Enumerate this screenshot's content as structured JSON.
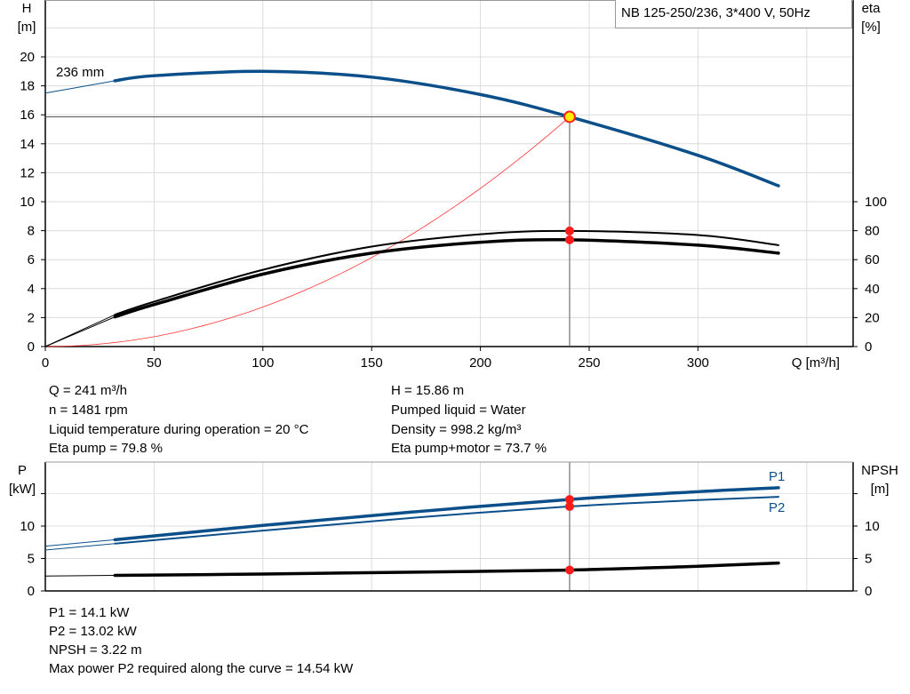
{
  "chart_data": [
    {
      "type": "line",
      "title": "NB 125-250/236, 3*400 V, 50Hz",
      "xlabel": "Q [m³/h]",
      "ylabel": "H",
      "ylabel_unit": "[m]",
      "y2label": "eta",
      "y2label_unit": "[%]",
      "xlim": [
        0,
        372
      ],
      "ylim": [
        0,
        24
      ],
      "y2lim": [
        0,
        100
      ],
      "xticks": [
        0,
        50,
        100,
        150,
        200,
        250,
        300
      ],
      "yticks": [
        0,
        2,
        4,
        6,
        8,
        10,
        12,
        14,
        16,
        18,
        20
      ],
      "y2ticks": [
        0,
        20,
        40,
        60,
        80,
        100
      ],
      "grid": true,
      "curve_label": "236 mm",
      "series": [
        {
          "key": "H",
          "axis": "left",
          "color": "#0b4f8a",
          "x": [
            0,
            32,
            50,
            100,
            150,
            200,
            241,
            300,
            337
          ],
          "y": [
            17.5,
            18.35,
            18.7,
            19.0,
            18.6,
            17.4,
            15.86,
            13.2,
            11.1
          ]
        },
        {
          "key": "eta_pump",
          "axis": "right",
          "color": "#000000",
          "x": [
            0,
            32,
            50,
            100,
            150,
            200,
            241,
            300,
            337
          ],
          "y": [
            0,
            22,
            31,
            53,
            69,
            77.5,
            79.8,
            77,
            70
          ]
        },
        {
          "key": "eta_pump_motor",
          "axis": "right",
          "color": "#000000",
          "x": [
            0,
            32,
            50,
            100,
            150,
            200,
            241,
            300,
            337
          ],
          "y": [
            0,
            20.5,
            29,
            50,
            64.5,
            72,
            73.7,
            70,
            64.5
          ]
        },
        {
          "key": "system_curve",
          "axis": "left",
          "color": "#ff3030",
          "x": [
            0,
            241
          ],
          "y": [
            0,
            15.86
          ],
          "shape": "quadratic"
        }
      ],
      "operating_point": {
        "Q": 241,
        "H": 15.86,
        "eta_pump": 79.8,
        "eta_pump_motor": 73.7
      }
    },
    {
      "type": "line",
      "ylabel": "P",
      "ylabel_unit": "[kW]",
      "y2label": "NPSH",
      "y2label_unit": "[m]",
      "xlim": [
        0,
        372
      ],
      "ylim": [
        0,
        19.8
      ],
      "yticks": [
        0,
        5,
        10
      ],
      "y2ticks": [
        0,
        5,
        10
      ],
      "grid": true,
      "series": [
        {
          "name": "P1",
          "color": "#0b4f8a",
          "x": [
            0,
            32,
            100,
            170,
            241,
            300,
            337
          ],
          "y": [
            6.9,
            7.9,
            10.1,
            12.2,
            14.1,
            15.3,
            15.9
          ]
        },
        {
          "name": "P2",
          "color": "#0b4f8a",
          "x": [
            0,
            32,
            100,
            170,
            241,
            300,
            337
          ],
          "y": [
            6.3,
            7.3,
            9.3,
            11.3,
            13.02,
            14.0,
            14.5
          ]
        },
        {
          "key": "NPSH",
          "color": "#000000",
          "x": [
            0,
            32,
            100,
            170,
            241,
            300,
            337
          ],
          "y": [
            2.3,
            2.4,
            2.6,
            2.9,
            3.22,
            3.8,
            4.3
          ]
        }
      ]
    }
  ],
  "results": {
    "left": [
      "Q = 241 m³/h",
      "n = 1481 rpm",
      "Liquid temperature during operation = 20 °C",
      "Eta pump = 79.8 %"
    ],
    "right": [
      "H = 15.86 m",
      "Pumped liquid = Water",
      "Density = 998.2 kg/m³",
      "Eta pump+motor = 73.7 %"
    ],
    "bottom": [
      "P1 = 14.1 kW",
      "P2 = 13.02 kW",
      "NPSH = 3.22 m",
      "Max power P2 required along the curve = 14.54 kW"
    ]
  }
}
